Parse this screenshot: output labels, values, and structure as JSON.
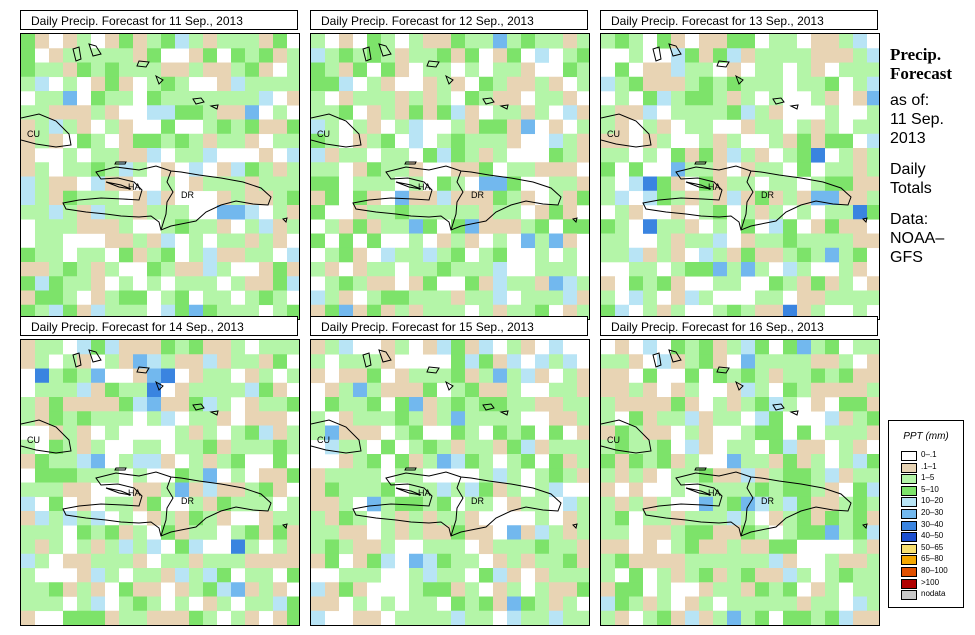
{
  "panels": [
    {
      "title": "Daily Precip. Forecast for  11 Sep., 2013",
      "seed": 11
    },
    {
      "title": "Daily Precip. Forecast for  12 Sep., 2013",
      "seed": 12
    },
    {
      "title": "Daily Precip. Forecast for  13 Sep., 2013",
      "seed": 13
    },
    {
      "title": "Daily Precip. Forecast for  14 Sep., 2013",
      "seed": 14
    },
    {
      "title": "Daily Precip. Forecast for  15 Sep., 2013",
      "seed": 15
    },
    {
      "title": "Daily Precip. Forecast for  16 Sep., 2013",
      "seed": 16
    }
  ],
  "map_labels": {
    "cu": "CU",
    "ha": "HA",
    "dr": "DR"
  },
  "side": {
    "title_line1": "Precip.",
    "title_line2": "Forecast",
    "asof": "as of:",
    "date_line1": "11 Sep.",
    "date_line2": "2013",
    "totals_line1": "Daily",
    "totals_line2": "Totals",
    "data_line1": "Data:",
    "data_line2": "NOAA–",
    "data_line3": "GFS"
  },
  "legend": {
    "title": "PPT (mm)",
    "items": [
      {
        "label": "0–.1",
        "color": "#ffffff"
      },
      {
        "label": ".1–1",
        "color": "#e8d4b4"
      },
      {
        "label": "1–5",
        "color": "#b4f5a8"
      },
      {
        "label": "5–10",
        "color": "#7de36a"
      },
      {
        "label": "10–20",
        "color": "#b8e4f5"
      },
      {
        "label": "20–30",
        "color": "#72b8ee"
      },
      {
        "label": "30–40",
        "color": "#3a84e0"
      },
      {
        "label": "40–50",
        "color": "#1c4fcf"
      },
      {
        "label": "50–65",
        "color": "#f8e070"
      },
      {
        "label": "65–80",
        "color": "#f5a800"
      },
      {
        "label": "80–100",
        "color": "#e05000"
      },
      {
        "label": ">100",
        "color": "#b00000"
      },
      {
        "label": "nodata",
        "color": "#c8c8c8"
      }
    ]
  }
}
